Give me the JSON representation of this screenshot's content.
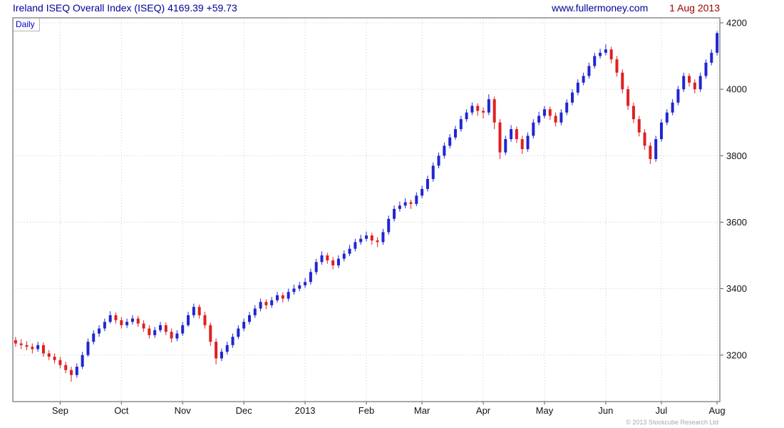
{
  "header": {
    "title": "Ireland ISEQ Overall Index (ISEQ) 4169.39 +59.73",
    "website": "www.fullermoney.com",
    "date": "1 Aug 2013"
  },
  "chart": {
    "frequency_label": "Daily",
    "copyright": "© 2013 Stockcube Research Ltd"
  },
  "chart_data": {
    "type": "candlestick",
    "title": "Ireland ISEQ Overall Index (ISEQ)",
    "last_close": 4169.39,
    "change": "+59.73",
    "ylim": [
      3060,
      4215
    ],
    "y_ticks": [
      3200,
      3400,
      3600,
      3800,
      4000,
      4200
    ],
    "x_ticks": [
      {
        "label": "Sep",
        "i": 8
      },
      {
        "label": "Oct",
        "i": 19
      },
      {
        "label": "Nov",
        "i": 30
      },
      {
        "label": "Dec",
        "i": 41
      },
      {
        "label": "2013",
        "i": 52
      },
      {
        "label": "Feb",
        "i": 63
      },
      {
        "label": "Mar",
        "i": 73
      },
      {
        "label": "Apr",
        "i": 84
      },
      {
        "label": "May",
        "i": 95
      },
      {
        "label": "Jun",
        "i": 106
      },
      {
        "label": "Jul",
        "i": 116
      },
      {
        "label": "Aug",
        "i": 126
      }
    ],
    "colors": {
      "up": "#2026d2",
      "down": "#e02020",
      "grid": "#c9c9c9",
      "frame": "#8c8c8c",
      "label": "#111111"
    },
    "candles": [
      [
        3245,
        3255,
        3225,
        3235
      ],
      [
        3235,
        3248,
        3218,
        3230
      ],
      [
        3230,
        3242,
        3215,
        3225
      ],
      [
        3225,
        3235,
        3205,
        3218
      ],
      [
        3218,
        3240,
        3210,
        3230
      ],
      [
        3230,
        3238,
        3195,
        3205
      ],
      [
        3205,
        3215,
        3185,
        3195
      ],
      [
        3195,
        3205,
        3175,
        3185
      ],
      [
        3185,
        3195,
        3160,
        3170
      ],
      [
        3170,
        3180,
        3145,
        3155
      ],
      [
        3155,
        3165,
        3120,
        3140
      ],
      [
        3140,
        3175,
        3132,
        3165
      ],
      [
        3165,
        3210,
        3158,
        3200
      ],
      [
        3200,
        3250,
        3195,
        3240
      ],
      [
        3240,
        3275,
        3232,
        3265
      ],
      [
        3265,
        3290,
        3255,
        3280
      ],
      [
        3280,
        3310,
        3272,
        3300
      ],
      [
        3300,
        3332,
        3295,
        3320
      ],
      [
        3320,
        3328,
        3295,
        3305
      ],
      [
        3305,
        3315,
        3280,
        3290
      ],
      [
        3290,
        3310,
        3282,
        3300
      ],
      [
        3300,
        3320,
        3292,
        3310
      ],
      [
        3310,
        3318,
        3285,
        3295
      ],
      [
        3295,
        3305,
        3270,
        3280
      ],
      [
        3280,
        3290,
        3250,
        3260
      ],
      [
        3260,
        3285,
        3252,
        3275
      ],
      [
        3275,
        3300,
        3268,
        3290
      ],
      [
        3290,
        3298,
        3260,
        3270
      ],
      [
        3270,
        3280,
        3238,
        3250
      ],
      [
        3250,
        3275,
        3242,
        3265
      ],
      [
        3265,
        3300,
        3258,
        3290
      ],
      [
        3290,
        3330,
        3285,
        3320
      ],
      [
        3320,
        3355,
        3312,
        3345
      ],
      [
        3345,
        3352,
        3310,
        3320
      ],
      [
        3320,
        3330,
        3280,
        3290
      ],
      [
        3290,
        3298,
        3228,
        3240
      ],
      [
        3240,
        3250,
        3172,
        3190
      ],
      [
        3190,
        3220,
        3182,
        3210
      ],
      [
        3210,
        3240,
        3202,
        3230
      ],
      [
        3230,
        3265,
        3222,
        3255
      ],
      [
        3255,
        3290,
        3248,
        3280
      ],
      [
        3280,
        3310,
        3272,
        3300
      ],
      [
        3300,
        3330,
        3292,
        3320
      ],
      [
        3320,
        3350,
        3312,
        3340
      ],
      [
        3340,
        3370,
        3332,
        3360
      ],
      [
        3360,
        3368,
        3338,
        3350
      ],
      [
        3350,
        3375,
        3342,
        3365
      ],
      [
        3365,
        3390,
        3358,
        3380
      ],
      [
        3380,
        3388,
        3358,
        3370
      ],
      [
        3370,
        3400,
        3362,
        3390
      ],
      [
        3390,
        3412,
        3382,
        3400
      ],
      [
        3400,
        3420,
        3392,
        3410
      ],
      [
        3410,
        3432,
        3402,
        3420
      ],
      [
        3420,
        3460,
        3412,
        3450
      ],
      [
        3450,
        3490,
        3442,
        3480
      ],
      [
        3480,
        3512,
        3472,
        3500
      ],
      [
        3500,
        3508,
        3475,
        3485
      ],
      [
        3485,
        3495,
        3458,
        3470
      ],
      [
        3470,
        3500,
        3462,
        3490
      ],
      [
        3490,
        3515,
        3482,
        3505
      ],
      [
        3505,
        3532,
        3498,
        3520
      ],
      [
        3520,
        3550,
        3512,
        3540
      ],
      [
        3540,
        3562,
        3532,
        3550
      ],
      [
        3550,
        3572,
        3542,
        3560
      ],
      [
        3560,
        3568,
        3532,
        3545
      ],
      [
        3545,
        3555,
        3525,
        3540
      ],
      [
        3540,
        3580,
        3532,
        3570
      ],
      [
        3570,
        3620,
        3562,
        3610
      ],
      [
        3610,
        3650,
        3602,
        3640
      ],
      [
        3640,
        3662,
        3632,
        3650
      ],
      [
        3650,
        3672,
        3642,
        3660
      ],
      [
        3660,
        3668,
        3640,
        3655
      ],
      [
        3655,
        3690,
        3648,
        3680
      ],
      [
        3680,
        3710,
        3672,
        3700
      ],
      [
        3700,
        3740,
        3692,
        3730
      ],
      [
        3730,
        3780,
        3722,
        3770
      ],
      [
        3770,
        3810,
        3762,
        3800
      ],
      [
        3800,
        3840,
        3792,
        3830
      ],
      [
        3830,
        3865,
        3822,
        3855
      ],
      [
        3855,
        3890,
        3848,
        3880
      ],
      [
        3880,
        3920,
        3872,
        3910
      ],
      [
        3910,
        3940,
        3902,
        3930
      ],
      [
        3930,
        3960,
        3922,
        3950
      ],
      [
        3950,
        3958,
        3920,
        3935
      ],
      [
        3935,
        3945,
        3912,
        3930
      ],
      [
        3930,
        3985,
        3922,
        3970
      ],
      [
        3970,
        3978,
        3880,
        3900
      ],
      [
        3900,
        3910,
        3790,
        3810
      ],
      [
        3810,
        3860,
        3802,
        3850
      ],
      [
        3850,
        3892,
        3842,
        3880
      ],
      [
        3880,
        3888,
        3838,
        3850
      ],
      [
        3850,
        3860,
        3805,
        3820
      ],
      [
        3820,
        3870,
        3812,
        3860
      ],
      [
        3860,
        3910,
        3852,
        3900
      ],
      [
        3900,
        3932,
        3892,
        3920
      ],
      [
        3920,
        3950,
        3912,
        3940
      ],
      [
        3940,
        3948,
        3908,
        3920
      ],
      [
        3920,
        3930,
        3888,
        3900
      ],
      [
        3900,
        3940,
        3892,
        3930
      ],
      [
        3930,
        3970,
        3922,
        3960
      ],
      [
        3960,
        4000,
        3952,
        3990
      ],
      [
        3990,
        4030,
        3982,
        4020
      ],
      [
        4020,
        4050,
        4012,
        4040
      ],
      [
        4040,
        4080,
        4032,
        4070
      ],
      [
        4070,
        4110,
        4062,
        4100
      ],
      [
        4100,
        4122,
        4092,
        4110
      ],
      [
        4110,
        4135,
        4102,
        4120
      ],
      [
        4120,
        4128,
        4078,
        4090
      ],
      [
        4090,
        4100,
        4038,
        4050
      ],
      [
        4050,
        4060,
        3988,
        4000
      ],
      [
        4000,
        4010,
        3938,
        3950
      ],
      [
        3950,
        3960,
        3898,
        3910
      ],
      [
        3910,
        3920,
        3858,
        3870
      ],
      [
        3870,
        3880,
        3818,
        3830
      ],
      [
        3830,
        3840,
        3775,
        3790
      ],
      [
        3790,
        3860,
        3782,
        3850
      ],
      [
        3850,
        3910,
        3842,
        3900
      ],
      [
        3900,
        3940,
        3892,
        3930
      ],
      [
        3930,
        3970,
        3922,
        3960
      ],
      [
        3960,
        4010,
        3952,
        4000
      ],
      [
        4000,
        4050,
        3992,
        4040
      ],
      [
        4040,
        4048,
        4008,
        4020
      ],
      [
        4020,
        4030,
        3988,
        4000
      ],
      [
        4000,
        4050,
        3992,
        4040
      ],
      [
        4040,
        4090,
        4032,
        4080
      ],
      [
        4080,
        4120,
        4072,
        4110
      ],
      [
        4110,
        4175,
        4102,
        4169
      ]
    ]
  }
}
